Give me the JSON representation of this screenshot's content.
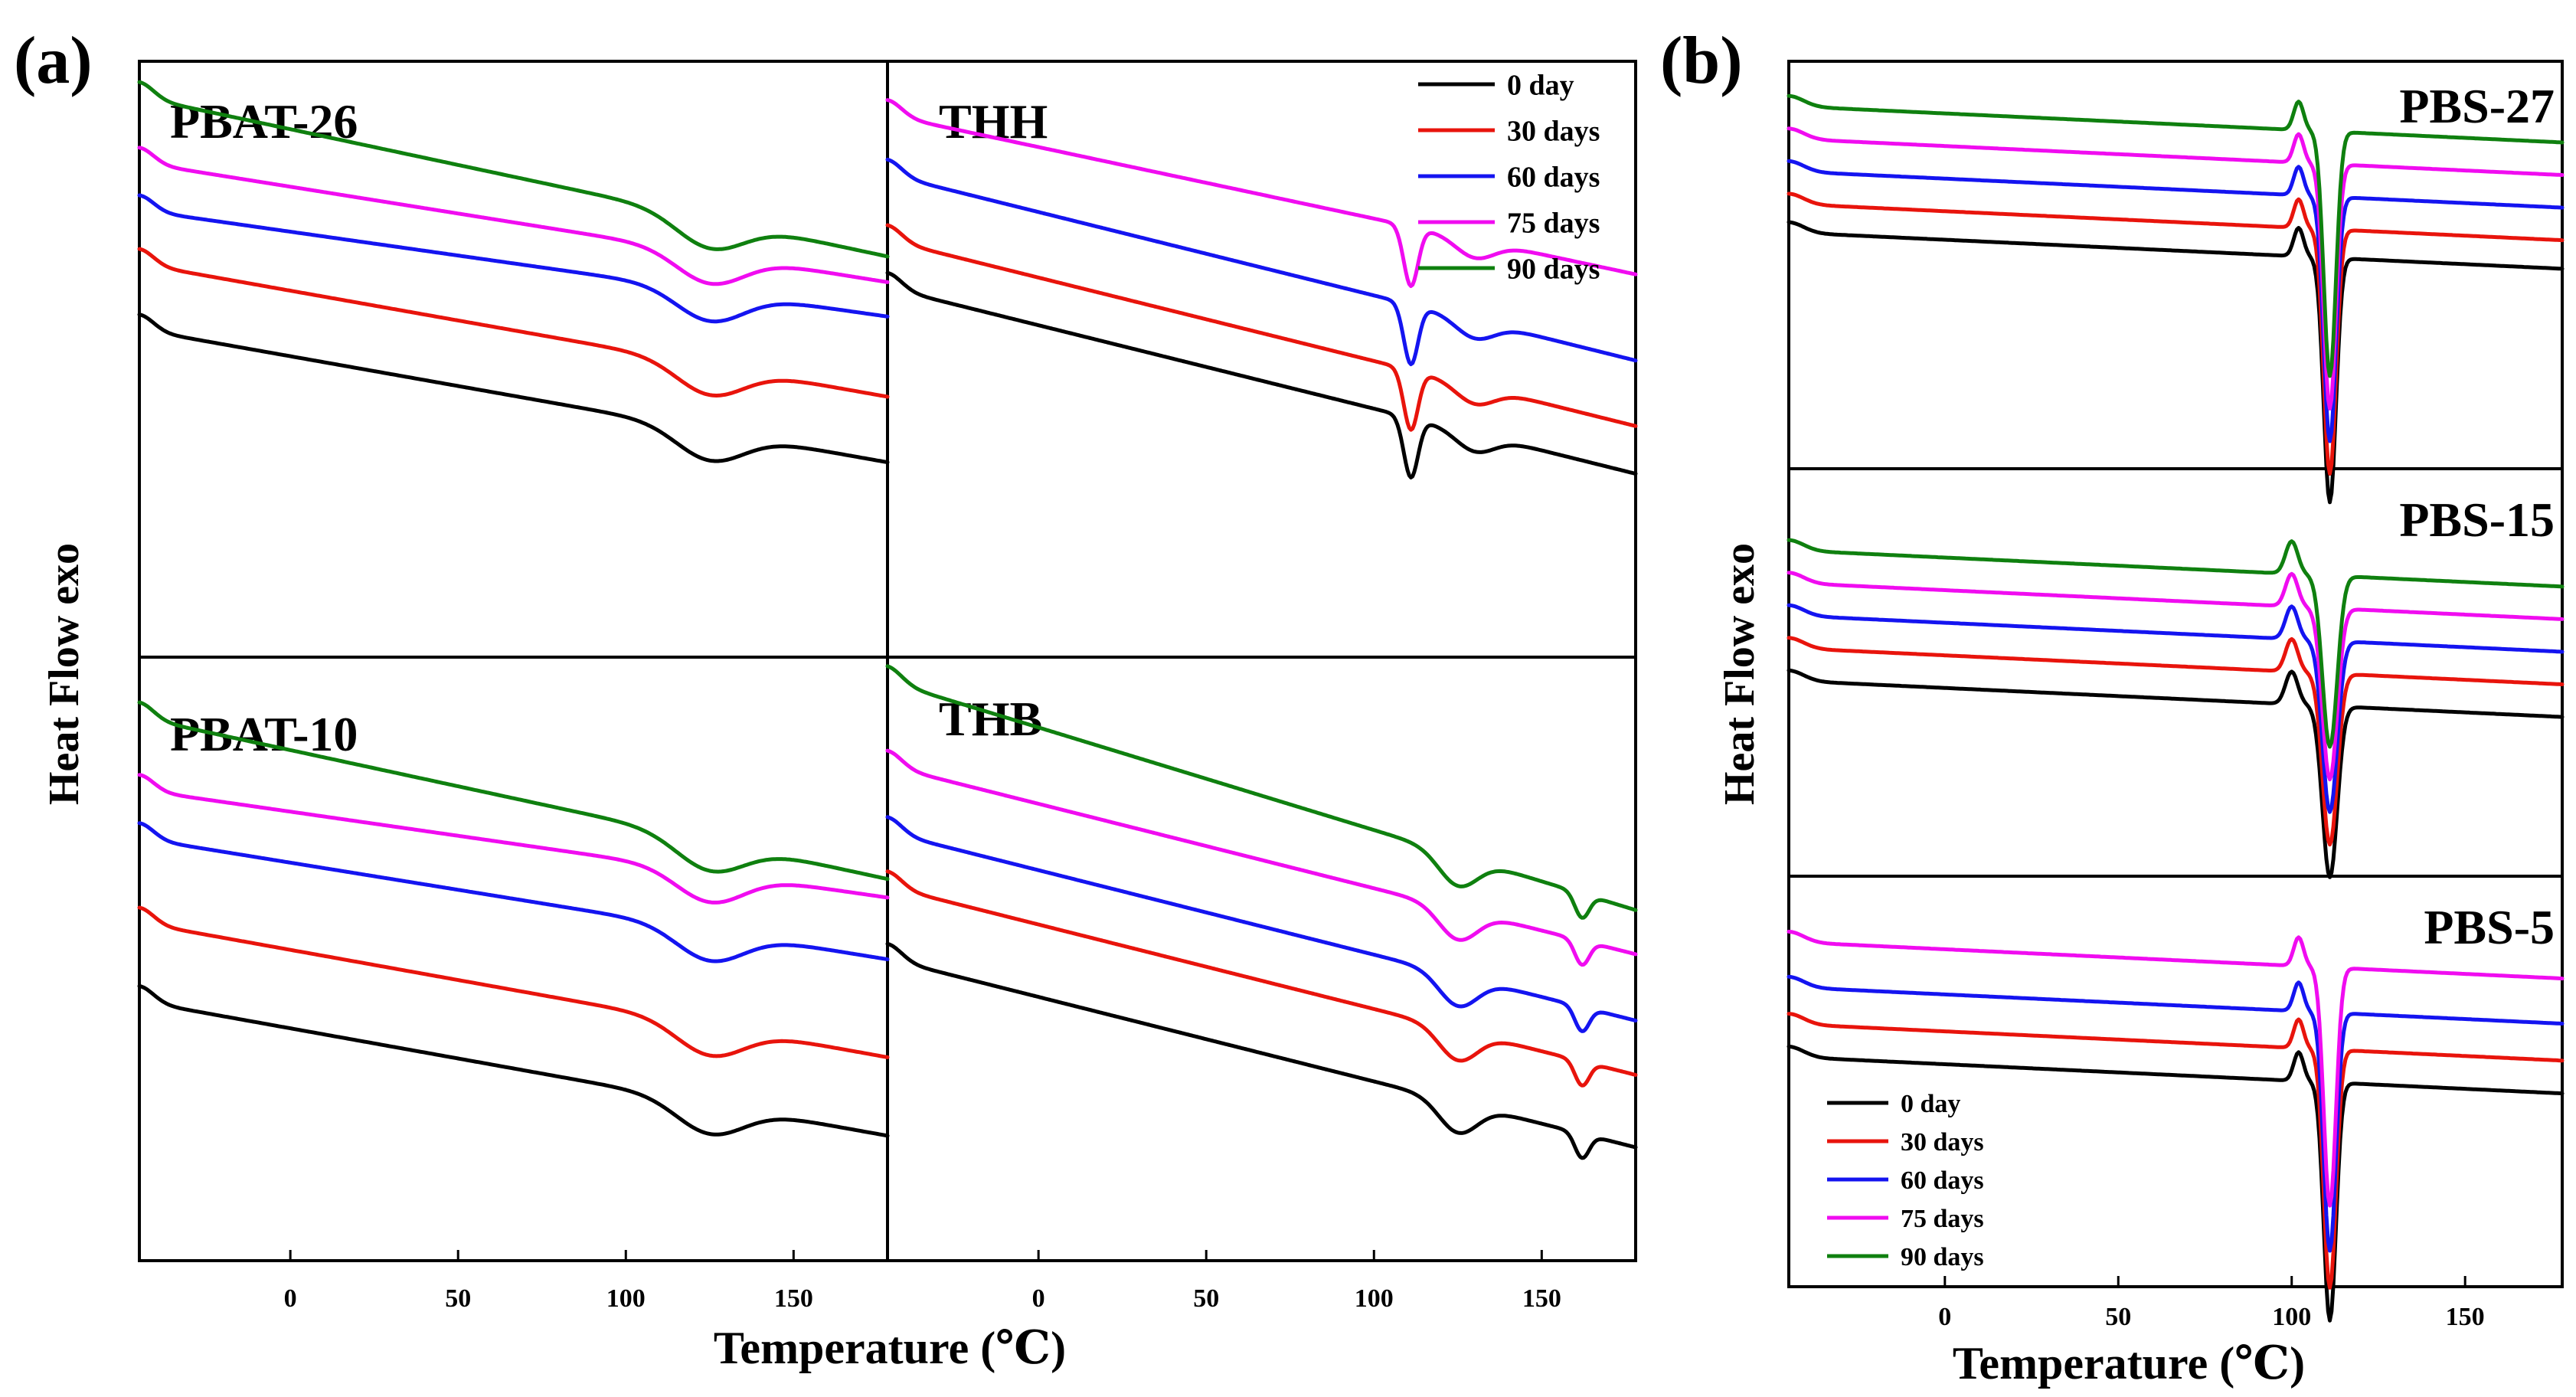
{
  "figure": {
    "panel_a_label": "(a)",
    "panel_b_label": "(b)",
    "y_axis_label": "Heat Flow exo",
    "x_axis_label": "Temperature (℃)"
  },
  "series_meta": [
    {
      "name": "0 day",
      "color": "#000000"
    },
    {
      "name": "30 days",
      "color": "#e8140c"
    },
    {
      "name": "60 days",
      "color": "#1414f0"
    },
    {
      "name": "75 days",
      "color": "#f00cf0"
    },
    {
      "name": "90 days",
      "color": "#0f800f"
    }
  ],
  "chart_data": [
    {
      "type": "line",
      "title": "PBAT-26",
      "xlabel": "Temperature (℃)",
      "ylabel": "Heat Flow exo",
      "xlim": [
        -45,
        178
      ],
      "ylim": [
        0,
        100
      ],
      "features": [
        {
          "type": "melt",
          "tm": 125,
          "depth": 5,
          "width": 14
        }
      ],
      "series": [
        {
          "name": "0 day",
          "offset": 55,
          "slope": -0.1
        },
        {
          "name": "30 days",
          "offset": 66,
          "slope": -0.1
        },
        {
          "name": "60 days",
          "offset": 75,
          "slope": -0.08
        },
        {
          "name": "75 days",
          "offset": 83,
          "slope": -0.09
        },
        {
          "name": "90 days",
          "offset": 94,
          "slope": -0.12
        }
      ]
    },
    {
      "type": "line",
      "title": "THH",
      "xlabel": "Temperature (℃)",
      "ylabel": "Heat Flow exo",
      "xlim": [
        -45,
        178
      ],
      "ylim": [
        0,
        100
      ],
      "features": [
        {
          "type": "melt",
          "tm": 111,
          "depth": 10,
          "width": 3
        },
        {
          "type": "melt",
          "tm": 130,
          "depth": 3,
          "width": 8
        }
      ],
      "series": [
        {
          "name": "0 day",
          "offset": 62,
          "slope": -0.14
        },
        {
          "name": "30 days",
          "offset": 70,
          "slope": -0.14
        },
        {
          "name": "60 days",
          "offset": 81,
          "slope": -0.14
        },
        {
          "name": "75 days",
          "offset": 91,
          "slope": -0.12
        }
      ]
    },
    {
      "type": "line",
      "title": "PBAT-10",
      "xlabel": "Temperature (℃)",
      "ylabel": "Heat Flow exo",
      "xlim": [
        -45,
        178
      ],
      "ylim": [
        0,
        100
      ],
      "features": [
        {
          "type": "melt",
          "tm": 125,
          "depth": 5,
          "width": 14
        }
      ],
      "series": [
        {
          "name": "0 day",
          "offset": 43,
          "slope": -0.1
        },
        {
          "name": "30 days",
          "offset": 56,
          "slope": -0.1
        },
        {
          "name": "60 days",
          "offset": 70,
          "slope": -0.09
        },
        {
          "name": "75 days",
          "offset": 78,
          "slope": -0.08
        },
        {
          "name": "90 days",
          "offset": 90,
          "slope": -0.12
        }
      ]
    },
    {
      "type": "line",
      "title": "THB",
      "xlabel": "Temperature (℃)",
      "ylabel": "Heat Flow exo",
      "xlim": [
        -45,
        178
      ],
      "ylim": [
        0,
        100
      ],
      "features": [
        {
          "type": "melt",
          "tm": 125,
          "depth": 5,
          "width": 8
        },
        {
          "type": "melt",
          "tm": 162,
          "depth": 4,
          "width": 3
        }
      ],
      "series": [
        {
          "name": "0 day",
          "offset": 50,
          "slope": -0.14
        },
        {
          "name": "30 days",
          "offset": 62,
          "slope": -0.14
        },
        {
          "name": "60 days",
          "offset": 71,
          "slope": -0.14
        },
        {
          "name": "75 days",
          "offset": 82,
          "slope": -0.14
        },
        {
          "name": "90 days",
          "offset": 96,
          "slope": -0.17
        }
      ]
    },
    {
      "type": "line",
      "title": "PBS-27",
      "xlabel": "Temperature (℃)",
      "ylabel": "Heat Flow exo",
      "xlim": [
        -45,
        178
      ],
      "ylim": [
        0,
        100
      ],
      "features": [
        {
          "type": "melt",
          "tm": 111,
          "depth": 60,
          "width": 2.5
        },
        {
          "type": "cryst",
          "tc": 102,
          "height": 7,
          "width": 2
        }
      ],
      "series": [
        {
          "name": "0 day",
          "offset": 58,
          "slope": -0.04
        },
        {
          "name": "30 days",
          "offset": 65,
          "slope": -0.04
        },
        {
          "name": "60 days",
          "offset": 73,
          "slope": -0.04
        },
        {
          "name": "75 days",
          "offset": 81,
          "slope": -0.04
        },
        {
          "name": "90 days",
          "offset": 89,
          "slope": -0.04
        }
      ]
    },
    {
      "type": "line",
      "title": "PBS-15",
      "xlabel": "Temperature (℃)",
      "ylabel": "Heat Flow exo",
      "xlim": [
        -45,
        178
      ],
      "ylim": [
        0,
        100
      ],
      "features": [
        {
          "type": "melt",
          "tm": 111,
          "depth": 42,
          "width": 3
        },
        {
          "type": "cryst",
          "tc": 100,
          "height": 8,
          "width": 2.5
        }
      ],
      "series": [
        {
          "name": "0 day",
          "offset": 48,
          "slope": -0.04
        },
        {
          "name": "30 days",
          "offset": 56,
          "slope": -0.04
        },
        {
          "name": "60 days",
          "offset": 64,
          "slope": -0.04
        },
        {
          "name": "75 days",
          "offset": 72,
          "slope": -0.04
        },
        {
          "name": "90 days",
          "offset": 80,
          "slope": -0.04
        }
      ]
    },
    {
      "type": "line",
      "title": "PBS-5",
      "xlabel": "Temperature (℃)",
      "ylabel": "Heat Flow exo",
      "xlim": [
        -45,
        178
      ],
      "ylim": [
        0,
        100
      ],
      "features": [
        {
          "type": "melt",
          "tm": 111,
          "depth": 58,
          "width": 2.5
        },
        {
          "type": "cryst",
          "tc": 102,
          "height": 7,
          "width": 2
        }
      ],
      "series": [
        {
          "name": "0 day",
          "offset": 56,
          "slope": -0.04
        },
        {
          "name": "30 days",
          "offset": 64,
          "slope": -0.04
        },
        {
          "name": "60 days",
          "offset": 73,
          "slope": -0.04
        },
        {
          "name": "75 days",
          "offset": 84,
          "slope": -0.04
        }
      ]
    }
  ],
  "x_ticks": [
    0,
    50,
    100,
    150
  ]
}
